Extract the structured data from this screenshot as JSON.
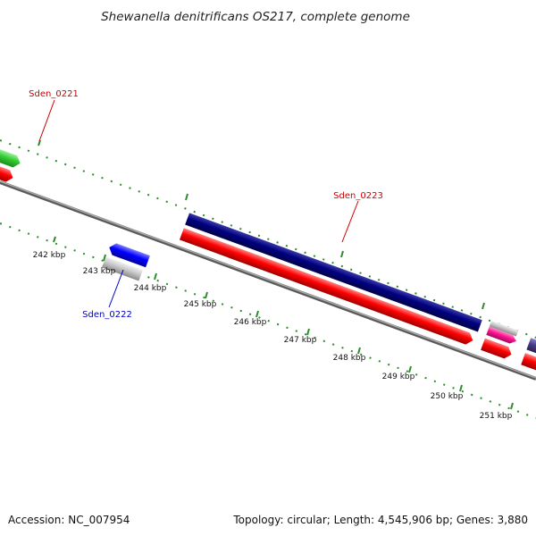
{
  "title": "Shewanella denitrificans OS217, complete genome",
  "footer": {
    "accession": "Accession: NC_007954",
    "summary": "Topology: circular; Length: 4,545,906 bp; Genes: 3,880"
  },
  "scale_labels": [
    "242 kbp",
    "243 kbp",
    "244 kbp",
    "245 kbp",
    "246 kbp",
    "247 kbp",
    "248 kbp",
    "249 kbp",
    "250 kbp",
    "251 kbp"
  ],
  "gene_labels": [
    {
      "id": "sden-0221",
      "text": "Sden_0221",
      "color": "#cc0000"
    },
    {
      "id": "sden-0223",
      "text": "Sden_0223",
      "color": "#cc0000"
    },
    {
      "id": "sden-0222",
      "text": "Sden_0222",
      "color": "#0000cc"
    }
  ],
  "colors": {
    "tick": "#2e8b2e",
    "backbone": "#808080",
    "cds_forward": "#ff0000",
    "gene_green": "#33cc33",
    "gene_navy": "#000080",
    "gene_blue": "#0000ff",
    "gene_magenta": "#ff1493",
    "gene_purple": "#483d8b",
    "gene_grey": "#c0c0c0"
  }
}
